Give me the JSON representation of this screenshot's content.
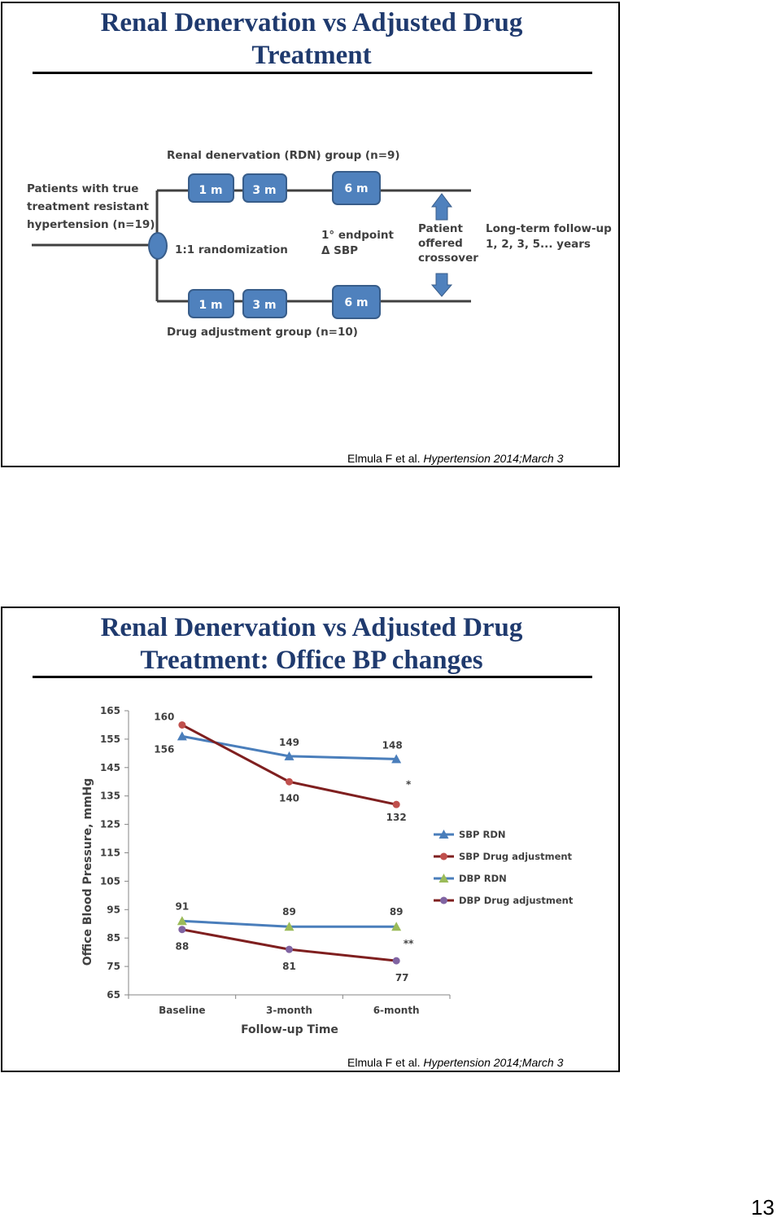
{
  "slide1": {
    "title_line1": "Renal Denervation vs Adjusted Drug",
    "title_line2": "Treatment",
    "citation_authors": "Elmula F et al. ",
    "citation_journal": "Hypertension 2014;March 3",
    "diagram": {
      "rdn_group": "Renal denervation (RDN) group (n=9)",
      "drug_group": "Drug adjustment group (n=10)",
      "patients_line1": "Patients with true",
      "patients_line2": "treatment resistant",
      "patients_line3": "hypertension (n=19)",
      "randomization": "1:1 randomization",
      "box_1m": "1 m",
      "box_3m": "3 m",
      "box_6m": "6 m",
      "endpoint_line1": "1° endpoint",
      "endpoint_line2": "Δ SBP",
      "crossover_line1": "Patient",
      "crossover_line2": "offered",
      "crossover_line3": "crossover",
      "followup_line1": "Long-term follow-up",
      "followup_line2": "1, 2, 3, 5... years",
      "colors": {
        "box": "#4f81bd",
        "box_border": "#385d8a",
        "arrow": "#4f81bd",
        "line": "#404040"
      }
    }
  },
  "slide2": {
    "title_line1": "Renal Denervation vs Adjusted Drug",
    "title_line2": "Treatment: Office BP changes",
    "citation_authors": "Elmula F et al. ",
    "citation_journal": "Hypertension 2014;March 3"
  },
  "page_number": "13",
  "chart_data": {
    "type": "line",
    "categories": [
      "Baseline",
      "3-month",
      "6-month"
    ],
    "xlabel": "Follow-up Time",
    "ylabel": "Office Blood Pressure, mmHg",
    "ylim": [
      65,
      165
    ],
    "yticks": [
      65,
      75,
      85,
      95,
      105,
      115,
      125,
      135,
      145,
      155,
      165
    ],
    "grid": false,
    "legend_position": "right",
    "series": [
      {
        "name": "SBP RDN",
        "values": [
          156,
          149,
          148
        ],
        "labels": [
          "156",
          "149",
          "148"
        ],
        "color": "#4a7ebb",
        "marker": "triangle"
      },
      {
        "name": "SBP Drug adjustment",
        "values": [
          160,
          140,
          132
        ],
        "labels": [
          "160",
          "140",
          "132"
        ],
        "color": "#7f1f1f",
        "marker": "circle"
      },
      {
        "name": "DBP RDN",
        "values": [
          91,
          89,
          89
        ],
        "labels": [
          "91",
          "89",
          "89"
        ],
        "color": "#4a7ebb",
        "marker": "triangle"
      },
      {
        "name": "DBP Drug adjustment",
        "values": [
          88,
          81,
          77
        ],
        "labels": [
          "88",
          "81",
          "77"
        ],
        "color": "#7f1f1f",
        "marker": "circle"
      }
    ],
    "marker_colors": {
      "SBP RDN": "#4a7ebb",
      "SBP Drug adjustment": "#c0504d",
      "DBP RDN": "#9bbb59",
      "DBP Drug adjustment": "#8064a2"
    },
    "annotations": [
      {
        "text": "*",
        "category": "6-month",
        "y": 139
      },
      {
        "text": "**",
        "category": "6-month",
        "y": 83
      }
    ]
  }
}
